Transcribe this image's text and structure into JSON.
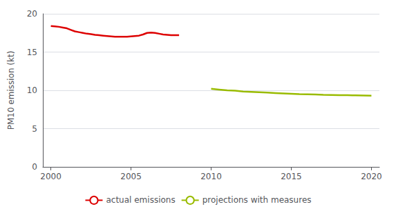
{
  "chart_data": {
    "type": "line",
    "ylabel": "PM10 emission (kt)",
    "series": [
      {
        "name": "actual emissions",
        "color": "#dd0000",
        "x": [
          2000,
          2000.25,
          2000.5,
          2000.75,
          2001,
          2001.25,
          2001.5,
          2001.75,
          2002,
          2002.25,
          2002.5,
          2002.75,
          2003,
          2003.25,
          2003.5,
          2003.75,
          2004,
          2004.25,
          2004.5,
          2004.75,
          2005,
          2005.25,
          2005.5,
          2005.75,
          2006,
          2006.25,
          2006.5,
          2006.75,
          2007,
          2007.25,
          2007.5,
          2007.75,
          2008
        ],
        "values": [
          18.4,
          18.35,
          18.3,
          18.2,
          18.1,
          17.9,
          17.7,
          17.6,
          17.5,
          17.4,
          17.35,
          17.25,
          17.2,
          17.15,
          17.1,
          17.05,
          17.0,
          17.0,
          17.0,
          17.0,
          17.05,
          17.1,
          17.15,
          17.3,
          17.5,
          17.55,
          17.5,
          17.4,
          17.3,
          17.25,
          17.2,
          17.2,
          17.2
        ]
      },
      {
        "name": "projections with measures",
        "color": "#99bb00",
        "x": [
          2010,
          2010.5,
          2011,
          2011.5,
          2012,
          2012.5,
          2013,
          2013.5,
          2014,
          2014.5,
          2015,
          2015.5,
          2016,
          2016.5,
          2017,
          2017.5,
          2018,
          2018.5,
          2019,
          2019.5,
          2020
        ],
        "values": [
          10.2,
          10.1,
          10.0,
          9.95,
          9.85,
          9.8,
          9.75,
          9.7,
          9.65,
          9.6,
          9.55,
          9.5,
          9.48,
          9.45,
          9.42,
          9.4,
          9.38,
          9.36,
          9.34,
          9.32,
          9.3
        ]
      }
    ],
    "xlim": [
      1999.5,
      2020.5
    ],
    "ylim": [
      0,
      20
    ],
    "xticks": [
      2000,
      2005,
      2010,
      2015,
      2020
    ],
    "yticks": [
      0,
      5,
      10,
      15,
      20
    ],
    "grid": "y",
    "legend": "bottom"
  }
}
